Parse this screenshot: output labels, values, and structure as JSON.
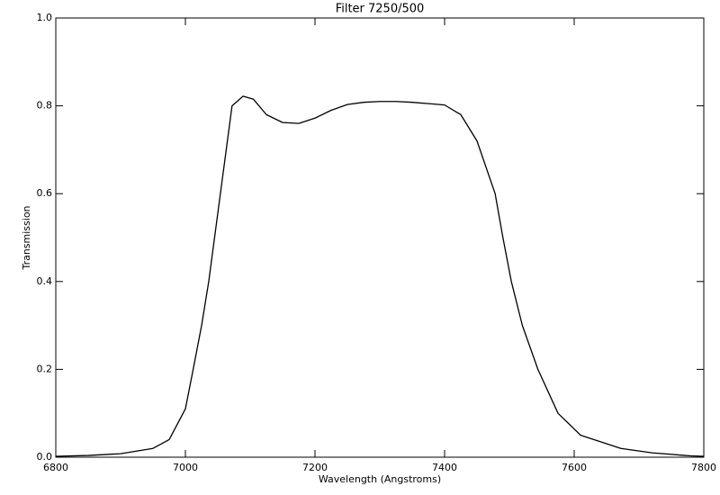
{
  "chart_data": {
    "type": "line",
    "title": "Filter 7250/500",
    "x_label": "Wavelength (Angstroms)",
    "y_label": "Transmission",
    "x": [
      6800,
      6850,
      6900,
      6950,
      6975,
      7000,
      7012,
      7025,
      7036,
      7054,
      7072,
      7089,
      7105,
      7125,
      7150,
      7175,
      7200,
      7225,
      7250,
      7275,
      7300,
      7325,
      7350,
      7375,
      7400,
      7425,
      7450,
      7478,
      7490,
      7503,
      7520,
      7544,
      7575,
      7610,
      7672,
      7720,
      7780,
      7800
    ],
    "series": [
      {
        "color": "#000000",
        "values": [
          0.002,
          0.004,
          0.008,
          0.02,
          0.04,
          0.11,
          0.2,
          0.3,
          0.4,
          0.6,
          0.8,
          0.822,
          0.815,
          0.78,
          0.762,
          0.76,
          0.772,
          0.79,
          0.803,
          0.808,
          0.81,
          0.81,
          0.808,
          0.805,
          0.802,
          0.78,
          0.72,
          0.6,
          0.5,
          0.4,
          0.3,
          0.2,
          0.1,
          0.05,
          0.02,
          0.01,
          0.003,
          0.002
        ]
      }
    ],
    "xlim": [
      6800,
      7800
    ],
    "xticks": [
      6800,
      7000,
      7200,
      7400,
      7600,
      7800
    ],
    "ylim": [
      0,
      1
    ],
    "yticks": [
      {
        "value": 0,
        "label": "0.0"
      },
      0.2,
      0.4,
      0.6,
      0.8,
      {
        "value": 1,
        "label": "1.0"
      }
    ]
  }
}
